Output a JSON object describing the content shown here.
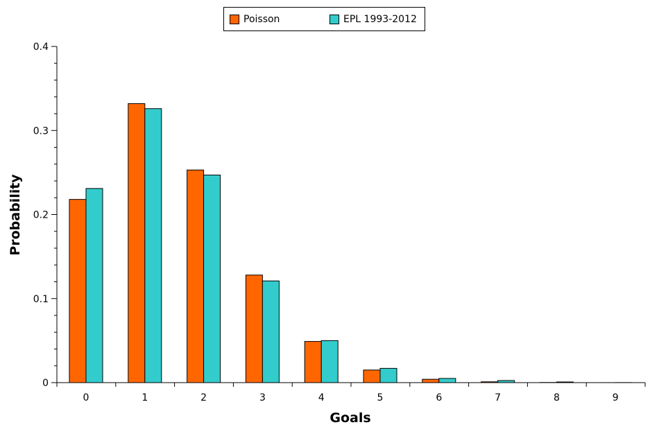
{
  "chart_data": {
    "type": "bar",
    "title": "",
    "xlabel": "Goals",
    "ylabel": "Probability",
    "categories": [
      "0",
      "1",
      "2",
      "3",
      "4",
      "5",
      "6",
      "7",
      "8",
      "9"
    ],
    "series": [
      {
        "name": "Poisson",
        "color": "#ff6600",
        "values": [
          0.218,
          0.332,
          0.253,
          0.128,
          0.049,
          0.015,
          0.004,
          0.001,
          0.0002,
          3e-05
        ]
      },
      {
        "name": "EPL 1993-2012",
        "color": "#33cccc",
        "values": [
          0.231,
          0.326,
          0.247,
          0.121,
          0.05,
          0.017,
          0.005,
          0.0025,
          0.0008,
          0.0001
        ]
      }
    ],
    "ylim": [
      0,
      0.4
    ],
    "yticks": [
      "0",
      "0.1",
      "0.2",
      "0.3",
      "0.4"
    ],
    "legend": "top-center",
    "grid": false
  }
}
